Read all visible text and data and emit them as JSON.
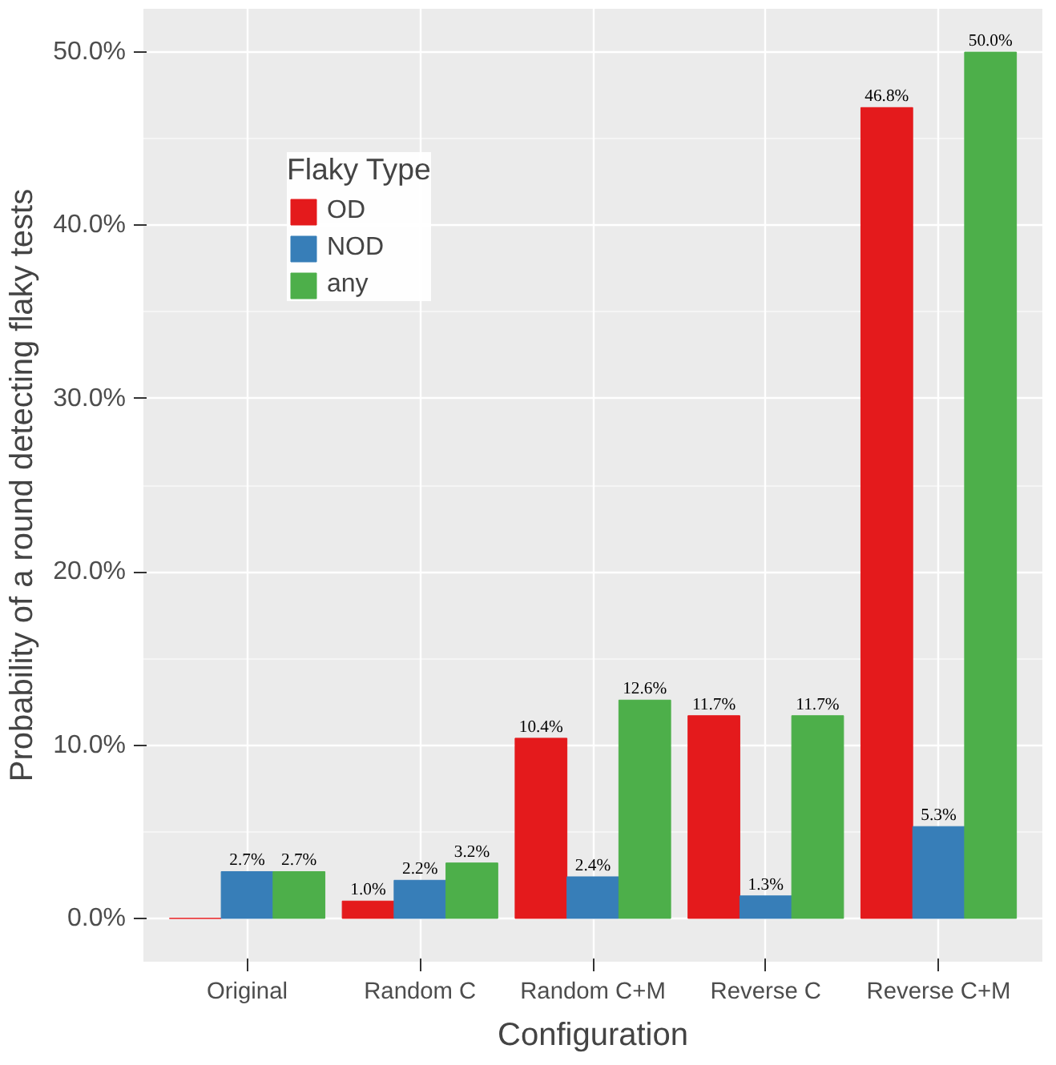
{
  "chart_data": {
    "type": "bar",
    "xlabel": "Configuration",
    "ylabel": "Probability of a round detecting flaky tests",
    "legend_title": "Flaky Type",
    "categories": [
      "Original",
      "Random C",
      "Random C+M",
      "Reverse C",
      "Reverse C+M"
    ],
    "series": [
      {
        "name": "OD",
        "color": "#e41a1c",
        "values": [
          0,
          1.0,
          10.4,
          11.7,
          46.8
        ],
        "value_labels": [
          null,
          "1.0%",
          "10.4%",
          "11.7%",
          "46.8%"
        ]
      },
      {
        "name": "NOD",
        "color": "#377eb8",
        "values": [
          2.7,
          2.2,
          2.4,
          1.3,
          5.3
        ],
        "value_labels": [
          "2.7%",
          "2.2%",
          "2.4%",
          "1.3%",
          "5.3%"
        ]
      },
      {
        "name": "any",
        "color": "#4daf4a",
        "values": [
          2.7,
          3.2,
          12.6,
          11.7,
          50.0
        ],
        "value_labels": [
          "2.7%",
          "3.2%",
          "12.6%",
          "11.7%",
          "50.0%"
        ]
      }
    ],
    "ylim": [
      -2.5,
      52.5
    ],
    "yticks": [
      {
        "value": 0,
        "label": "0.0%"
      },
      {
        "value": 10,
        "label": "10.0%"
      },
      {
        "value": 20,
        "label": "20.0%"
      },
      {
        "value": 30,
        "label": "30.0%"
      },
      {
        "value": 40,
        "label": "40.0%"
      },
      {
        "value": 50,
        "label": "50.0%"
      }
    ],
    "grid": true,
    "legend": "top left"
  }
}
